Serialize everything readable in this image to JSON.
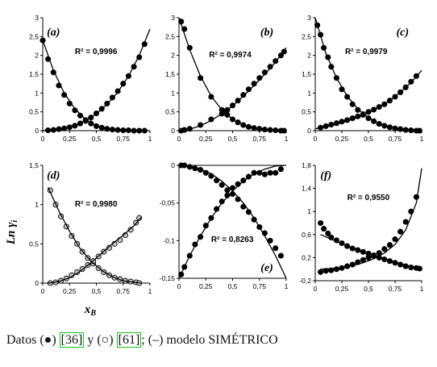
{
  "figure": {
    "ylabel": "Ln γ",
    "ylabel_sub": "i",
    "xlabel": "x",
    "xlabel_sub": "B"
  },
  "chart_data": [
    {
      "type": "scatter",
      "label": "(a)",
      "r2": "R² = 0,9996",
      "xlim": [
        0,
        1
      ],
      "ylim": [
        0,
        3
      ],
      "xticks": [
        "0",
        "0,25",
        "0,5",
        "0,75",
        "1"
      ],
      "yticks": [
        "0",
        "0,5",
        "1",
        "1,5",
        "2",
        "2,5",
        "3"
      ],
      "series": [
        {
          "marker": "filled",
          "x": [
            0.0,
            0.05,
            0.1,
            0.15,
            0.2,
            0.25,
            0.3,
            0.35,
            0.4,
            0.45,
            0.5,
            0.55,
            0.6,
            0.65,
            0.7,
            0.75,
            0.8,
            0.85,
            0.9,
            0.95
          ],
          "y": [
            2.4,
            1.9,
            1.55,
            1.2,
            0.95,
            0.72,
            0.54,
            0.4,
            0.28,
            0.19,
            0.12,
            0.08,
            0.05,
            0.03,
            0.02,
            0.01,
            0.01,
            0.0,
            0.0,
            0.0
          ]
        },
        {
          "marker": "filled",
          "x": [
            0.05,
            0.1,
            0.15,
            0.2,
            0.25,
            0.3,
            0.35,
            0.4,
            0.45,
            0.5,
            0.55,
            0.6,
            0.65,
            0.7,
            0.75,
            0.8,
            0.85,
            0.9,
            0.95
          ],
          "y": [
            0.01,
            0.02,
            0.04,
            0.06,
            0.09,
            0.13,
            0.19,
            0.26,
            0.35,
            0.46,
            0.58,
            0.72,
            0.88,
            1.05,
            1.25,
            1.45,
            1.7,
            1.95,
            2.3
          ]
        },
        {
          "marker": "line",
          "x": [
            0,
            0.1,
            0.2,
            0.3,
            0.4,
            0.5,
            0.6,
            0.7,
            0.8,
            0.9,
            1.0
          ],
          "y": [
            2.4,
            1.6,
            1.0,
            0.58,
            0.3,
            0.13,
            0.05,
            0.02,
            0.0,
            0.0,
            0.0
          ]
        },
        {
          "marker": "line",
          "x": [
            0,
            0.1,
            0.2,
            0.3,
            0.4,
            0.5,
            0.6,
            0.7,
            0.8,
            0.9,
            1.0
          ],
          "y": [
            0.0,
            0.02,
            0.06,
            0.14,
            0.27,
            0.45,
            0.7,
            1.02,
            1.45,
            2.0,
            2.7
          ]
        }
      ]
    },
    {
      "type": "scatter",
      "label": "(b)",
      "r2": "R² = 0,9974",
      "xlim": [
        0,
        1
      ],
      "ylim": [
        0,
        3
      ],
      "xticks": [
        "0",
        "0,25",
        "0,5",
        "0,75",
        "1"
      ],
      "yticks": [
        "0",
        "0,5",
        "1",
        "1,5",
        "2",
        "2,5",
        "3"
      ],
      "series": [
        {
          "marker": "filled",
          "x": [
            0.02,
            0.05,
            0.1,
            0.2,
            0.3,
            0.4,
            0.45,
            0.5,
            0.55,
            0.6,
            0.65,
            0.7,
            0.75,
            0.8,
            0.85,
            0.9,
            0.95,
            0.98
          ],
          "y": [
            2.9,
            2.7,
            2.2,
            1.4,
            0.9,
            0.55,
            0.42,
            0.3,
            0.22,
            0.15,
            0.1,
            0.07,
            0.05,
            0.03,
            0.02,
            0.01,
            0.0,
            0.0
          ]
        },
        {
          "marker": "filled",
          "x": [
            0.02,
            0.05,
            0.1,
            0.2,
            0.3,
            0.4,
            0.45,
            0.5,
            0.55,
            0.6,
            0.65,
            0.7,
            0.75,
            0.8,
            0.85,
            0.9,
            0.95,
            0.98
          ],
          "y": [
            0.0,
            0.02,
            0.05,
            0.15,
            0.3,
            0.45,
            0.55,
            0.67,
            0.8,
            0.95,
            1.1,
            1.25,
            1.4,
            1.55,
            1.7,
            1.85,
            2.0,
            2.1
          ]
        },
        {
          "marker": "line",
          "x": [
            0,
            0.1,
            0.2,
            0.3,
            0.4,
            0.5,
            0.6,
            0.7,
            0.8,
            0.9,
            1.0
          ],
          "y": [
            3.0,
            2.15,
            1.45,
            0.92,
            0.55,
            0.3,
            0.15,
            0.07,
            0.03,
            0.01,
            0.0
          ]
        },
        {
          "marker": "line",
          "x": [
            0,
            0.1,
            0.2,
            0.3,
            0.4,
            0.5,
            0.6,
            0.7,
            0.8,
            0.9,
            1.0
          ],
          "y": [
            0.0,
            0.04,
            0.13,
            0.27,
            0.45,
            0.66,
            0.92,
            1.2,
            1.5,
            1.82,
            2.2
          ]
        }
      ]
    },
    {
      "type": "scatter",
      "label": "(c)",
      "r2": "R² = 0,9979",
      "xlim": [
        0,
        1
      ],
      "ylim": [
        0,
        3
      ],
      "xticks": [
        "0",
        "0,25",
        "0,5",
        "0,75",
        "1"
      ],
      "yticks": [
        "0",
        "0,5",
        "1",
        "1,5",
        "2",
        "2,5",
        "3"
      ],
      "series": [
        {
          "marker": "filled",
          "x": [
            0.02,
            0.05,
            0.08,
            0.12,
            0.15,
            0.2,
            0.25,
            0.3,
            0.35,
            0.4,
            0.45,
            0.5,
            0.55,
            0.6,
            0.65,
            0.7,
            0.75,
            0.8,
            0.85,
            0.9,
            0.95,
            0.98
          ],
          "y": [
            2.8,
            2.55,
            2.2,
            1.95,
            1.7,
            1.4,
            1.1,
            0.9,
            0.7,
            0.55,
            0.42,
            0.33,
            0.25,
            0.18,
            0.13,
            0.09,
            0.06,
            0.04,
            0.02,
            0.01,
            0.0,
            0.0
          ]
        },
        {
          "marker": "filled",
          "x": [
            0.05,
            0.1,
            0.15,
            0.2,
            0.25,
            0.3,
            0.35,
            0.4,
            0.45,
            0.5,
            0.55,
            0.6,
            0.65,
            0.7,
            0.75,
            0.8,
            0.85,
            0.9,
            0.95
          ],
          "y": [
            0.08,
            0.12,
            0.16,
            0.2,
            0.24,
            0.28,
            0.33,
            0.38,
            0.44,
            0.5,
            0.56,
            0.63,
            0.7,
            0.8,
            0.9,
            1.02,
            1.15,
            1.3,
            1.45
          ]
        },
        {
          "marker": "line",
          "x": [
            0,
            0.1,
            0.2,
            0.3,
            0.4,
            0.5,
            0.6,
            0.7,
            0.8,
            0.9,
            1.0
          ],
          "y": [
            3.0,
            2.05,
            1.4,
            0.92,
            0.58,
            0.34,
            0.18,
            0.08,
            0.03,
            0.01,
            0.0
          ]
        },
        {
          "marker": "line",
          "x": [
            0,
            0.1,
            0.2,
            0.3,
            0.4,
            0.5,
            0.6,
            0.7,
            0.8,
            0.9,
            1.0
          ],
          "y": [
            0.05,
            0.1,
            0.17,
            0.25,
            0.35,
            0.47,
            0.62,
            0.8,
            1.02,
            1.28,
            1.6
          ]
        }
      ]
    },
    {
      "type": "scatter",
      "label": "(d)",
      "r2": "R² = 0,9980",
      "xlim": [
        0,
        1
      ],
      "ylim": [
        0,
        1.5
      ],
      "xticks": [
        "0",
        "0,25",
        "0,5",
        "0,75",
        "1"
      ],
      "yticks": [
        "0",
        "0,5",
        "1",
        "1,5"
      ],
      "series": [
        {
          "marker": "open",
          "x": [
            0.07,
            0.12,
            0.17,
            0.22,
            0.27,
            0.32,
            0.37,
            0.42,
            0.47,
            0.52,
            0.57,
            0.62,
            0.67,
            0.72,
            0.77,
            0.82,
            0.87,
            0.9
          ],
          "y": [
            1.18,
            1.0,
            0.85,
            0.72,
            0.6,
            0.5,
            0.4,
            0.32,
            0.25,
            0.19,
            0.14,
            0.1,
            0.07,
            0.05,
            0.03,
            0.02,
            0.01,
            0.0
          ]
        },
        {
          "marker": "open",
          "x": [
            0.07,
            0.12,
            0.17,
            0.22,
            0.27,
            0.32,
            0.37,
            0.42,
            0.47,
            0.52,
            0.57,
            0.62,
            0.67,
            0.72,
            0.77,
            0.82,
            0.87,
            0.9
          ],
          "y": [
            0.0,
            0.01,
            0.03,
            0.06,
            0.1,
            0.14,
            0.18,
            0.23,
            0.28,
            0.34,
            0.4,
            0.45,
            0.5,
            0.55,
            0.61,
            0.68,
            0.77,
            0.83
          ]
        },
        {
          "marker": "line",
          "x": [
            0.05,
            0.15,
            0.25,
            0.35,
            0.45,
            0.55,
            0.65,
            0.75,
            0.85,
            0.92
          ],
          "y": [
            1.22,
            0.92,
            0.66,
            0.44,
            0.28,
            0.16,
            0.08,
            0.03,
            0.01,
            0.0
          ]
        },
        {
          "marker": "line",
          "x": [
            0.05,
            0.15,
            0.25,
            0.35,
            0.45,
            0.55,
            0.65,
            0.75,
            0.85,
            0.92
          ],
          "y": [
            0.0,
            0.02,
            0.07,
            0.15,
            0.26,
            0.38,
            0.5,
            0.61,
            0.73,
            0.84
          ]
        }
      ]
    },
    {
      "type": "scatter",
      "label": "(e)",
      "r2": "R² = 0,8263",
      "xlim": [
        0,
        1
      ],
      "ylim": [
        -0.15,
        0
      ],
      "xticks": [
        "0",
        "0,25",
        "0,5",
        "0,75",
        "1"
      ],
      "yticks": [
        "0",
        "-0,05",
        "-0,1",
        "-0,15"
      ],
      "series": [
        {
          "marker": "filled",
          "x": [
            0.02,
            0.05,
            0.1,
            0.15,
            0.2,
            0.25,
            0.3,
            0.35,
            0.4,
            0.45,
            0.5,
            0.55,
            0.6,
            0.65,
            0.7,
            0.75,
            0.8,
            0.85,
            0.9,
            0.95
          ],
          "y": [
            -0.145,
            -0.135,
            -0.12,
            -0.105,
            -0.095,
            -0.08,
            -0.07,
            -0.058,
            -0.048,
            -0.04,
            -0.03,
            -0.025,
            -0.02,
            -0.015,
            -0.01,
            -0.01,
            -0.012,
            -0.01,
            -0.01,
            -0.005
          ]
        },
        {
          "marker": "filled",
          "x": [
            0.02,
            0.05,
            0.1,
            0.15,
            0.2,
            0.25,
            0.3,
            0.35,
            0.4,
            0.45,
            0.5,
            0.55,
            0.6,
            0.65,
            0.7,
            0.75,
            0.8,
            0.85,
            0.9,
            0.95
          ],
          "y": [
            0.0,
            0.0,
            -0.002,
            -0.004,
            -0.006,
            -0.01,
            -0.014,
            -0.02,
            -0.026,
            -0.033,
            -0.038,
            -0.045,
            -0.055,
            -0.062,
            -0.072,
            -0.082,
            -0.09,
            -0.1,
            -0.11,
            -0.12
          ]
        },
        {
          "marker": "line",
          "x": [
            0,
            0.1,
            0.2,
            0.3,
            0.4,
            0.5,
            0.6,
            0.7,
            0.8,
            0.9,
            1.0
          ],
          "y": [
            -0.15,
            -0.12,
            -0.094,
            -0.07,
            -0.05,
            -0.034,
            -0.021,
            -0.011,
            -0.005,
            -0.001,
            0.0
          ]
        },
        {
          "marker": "line",
          "x": [
            0,
            0.1,
            0.2,
            0.3,
            0.4,
            0.5,
            0.6,
            0.7,
            0.8,
            0.9,
            1.0
          ],
          "y": [
            0.0,
            -0.001,
            -0.005,
            -0.011,
            -0.021,
            -0.034,
            -0.05,
            -0.07,
            -0.094,
            -0.12,
            -0.15
          ]
        }
      ]
    },
    {
      "type": "scatter",
      "label": "(f)",
      "r2": "R² = 0,9550",
      "xlim": [
        0,
        1
      ],
      "ylim": [
        -0.2,
        1.8
      ],
      "xticks": [
        "0",
        "0,25",
        "0,5",
        "0,75",
        "1"
      ],
      "yticks": [
        "-0,2",
        "0,2",
        "0,6",
        "1",
        "1,4",
        "1,8"
      ],
      "series": [
        {
          "marker": "filled",
          "x": [
            0.05,
            0.08,
            0.12,
            0.15,
            0.2,
            0.25,
            0.3,
            0.35,
            0.4,
            0.45,
            0.5,
            0.55,
            0.6,
            0.65,
            0.7,
            0.75,
            0.8,
            0.85,
            0.9,
            0.95,
            0.98
          ],
          "y": [
            0.8,
            0.7,
            0.62,
            0.55,
            0.5,
            0.45,
            0.4,
            0.36,
            0.33,
            0.3,
            0.27,
            0.23,
            0.2,
            0.17,
            0.14,
            0.11,
            0.08,
            0.05,
            0.03,
            0.02,
            0.01
          ]
        },
        {
          "marker": "filled",
          "x": [
            0.05,
            0.1,
            0.15,
            0.2,
            0.25,
            0.3,
            0.35,
            0.4,
            0.45,
            0.5,
            0.55,
            0.6,
            0.65,
            0.7,
            0.75,
            0.8,
            0.85,
            0.9,
            0.95
          ],
          "y": [
            -0.05,
            -0.03,
            -0.02,
            0.0,
            0.02,
            0.05,
            0.08,
            0.12,
            0.16,
            0.2,
            0.24,
            0.28,
            0.35,
            0.42,
            0.52,
            0.65,
            0.82,
            1.0,
            1.25
          ]
        },
        {
          "marker": "line",
          "x": [
            0.05,
            0.15,
            0.25,
            0.35,
            0.45,
            0.55,
            0.65,
            0.75,
            0.85,
            0.95
          ],
          "y": [
            0.6,
            0.52,
            0.44,
            0.37,
            0.3,
            0.24,
            0.18,
            0.12,
            0.07,
            0.03
          ]
        },
        {
          "marker": "line",
          "x": [
            0.05,
            0.15,
            0.25,
            0.35,
            0.45,
            0.55,
            0.65,
            0.75,
            0.85,
            0.95,
            1.0
          ],
          "y": [
            0.0,
            0.01,
            0.03,
            0.06,
            0.11,
            0.18,
            0.28,
            0.43,
            0.68,
            1.15,
            1.75
          ]
        }
      ]
    }
  ],
  "caption": {
    "prefix": "Datos (●) ",
    "ref1": "[36]",
    "middle": " y (○) ",
    "ref2": "[61]",
    "suffix": "; (–) modelo SIMÉTRICO"
  }
}
